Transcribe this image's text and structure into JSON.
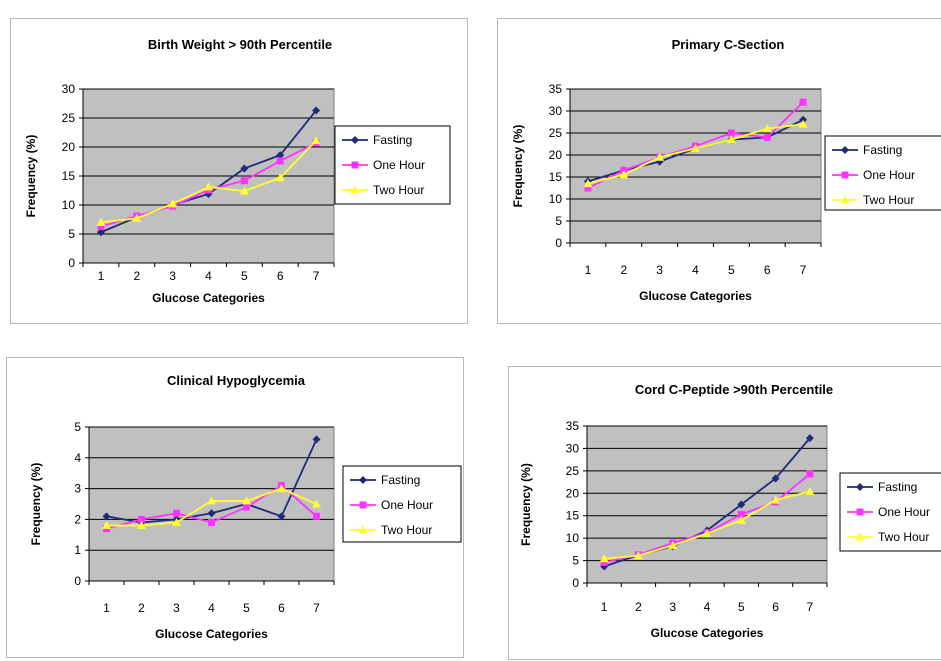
{
  "colors": {
    "plot_area": "#c0c0c0",
    "gridline": "#000000",
    "series": [
      "#1f2a7a",
      "#ff33ff",
      "#ffff33"
    ]
  },
  "markers": [
    "diamond",
    "square",
    "triangle"
  ],
  "chart_data": [
    {
      "type": "line",
      "title": "Birth Weight > 90th Percentile",
      "xlabel": "Glucose Categories",
      "ylabel": "Frequency (%)",
      "categories": [
        "1",
        "2",
        "3",
        "4",
        "5",
        "6",
        "7"
      ],
      "ylim": [
        0,
        30
      ],
      "yticks": [
        "0",
        "5",
        "10",
        "15",
        "20",
        "25",
        "30"
      ],
      "grid": true,
      "legend_position": "right",
      "series": [
        {
          "name": "Fasting",
          "values": [
            5.3,
            7.9,
            10.0,
            11.9,
            16.3,
            18.6,
            26.3
          ]
        },
        {
          "name": "One Hour",
          "values": [
            6.3,
            8.1,
            9.8,
            12.6,
            14.2,
            17.6,
            20.7
          ]
        },
        {
          "name": "Two Hour",
          "values": [
            7.0,
            7.7,
            10.2,
            13.1,
            12.4,
            14.7,
            21.1
          ]
        }
      ]
    },
    {
      "type": "line",
      "title": "Primary C-Section",
      "xlabel": "Glucose Categories",
      "ylabel": "Frequency (%)",
      "categories": [
        "1",
        "2",
        "3",
        "4",
        "5",
        "6",
        "7"
      ],
      "ylim": [
        0,
        35
      ],
      "yticks": [
        "0",
        "5",
        "10",
        "15",
        "20",
        "25",
        "30",
        "35"
      ],
      "grid": true,
      "legend_position": "right",
      "series": [
        {
          "name": "Fasting",
          "values": [
            14.0,
            16.5,
            18.5,
            21.5,
            23.5,
            24.0,
            28.0
          ]
        },
        {
          "name": "One Hour",
          "values": [
            12.5,
            16.5,
            19.5,
            22.0,
            25.0,
            24.0,
            32.0
          ]
        },
        {
          "name": "Two Hour",
          "values": [
            13.5,
            15.5,
            19.5,
            21.5,
            23.5,
            26.0,
            27.0
          ]
        }
      ]
    },
    {
      "type": "line",
      "title": "Clinical Hypoglycemia",
      "xlabel": "Glucose Categories",
      "ylabel": "Frequency (%)",
      "categories": [
        "1",
        "2",
        "3",
        "4",
        "5",
        "6",
        "7"
      ],
      "ylim": [
        0,
        5
      ],
      "yticks": [
        "0",
        "1",
        "2",
        "3",
        "4",
        "5"
      ],
      "grid": true,
      "legend_position": "right",
      "series": [
        {
          "name": "Fasting",
          "values": [
            2.1,
            1.9,
            2.0,
            2.2,
            2.5,
            2.1,
            4.6
          ]
        },
        {
          "name": "One Hour",
          "values": [
            1.7,
            2.0,
            2.2,
            1.9,
            2.4,
            3.1,
            2.1
          ]
        },
        {
          "name": "Two Hour",
          "values": [
            1.8,
            1.8,
            1.9,
            2.6,
            2.6,
            3.0,
            2.5
          ]
        }
      ]
    },
    {
      "type": "line",
      "title": "Cord C-Peptide >90th Percentile",
      "xlabel": "Glucose Categories",
      "ylabel": "Frequency (%)",
      "categories": [
        "1",
        "2",
        "3",
        "4",
        "5",
        "6",
        "7"
      ],
      "ylim": [
        0,
        35
      ],
      "yticks": [
        "0",
        "5",
        "10",
        "15",
        "20",
        "25",
        "30",
        "35"
      ],
      "grid": true,
      "legend_position": "right",
      "series": [
        {
          "name": "Fasting",
          "values": [
            3.7,
            6.2,
            8.2,
            11.7,
            17.5,
            23.3,
            32.3
          ]
        },
        {
          "name": "One Hour",
          "values": [
            4.6,
            6.3,
            8.9,
            11.2,
            15.3,
            18.1,
            24.3
          ]
        },
        {
          "name": "Two Hour",
          "values": [
            5.4,
            6.1,
            8.4,
            11.0,
            14.0,
            18.5,
            20.4
          ]
        }
      ]
    }
  ]
}
